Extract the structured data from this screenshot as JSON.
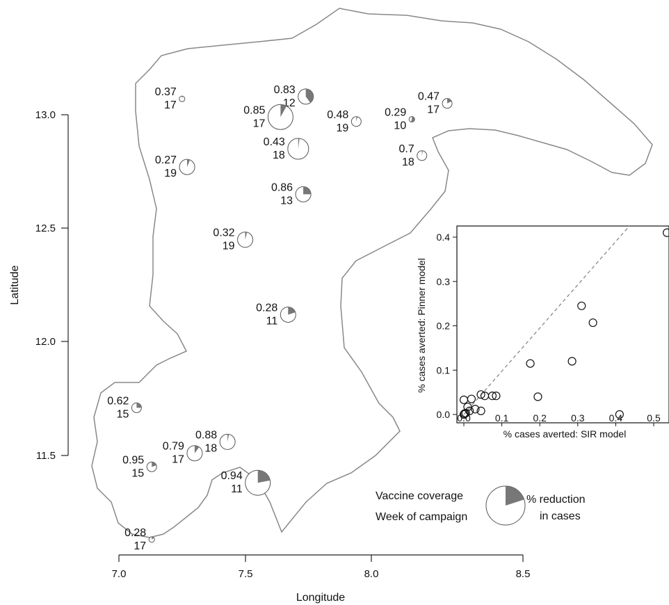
{
  "map": {
    "xlabel": "Longitude",
    "ylabel": "Latitude",
    "xticks": [
      "7.0",
      "7.5",
      "8.0",
      "8.5"
    ],
    "yticks": [
      "11.5",
      "12.0",
      "12.5",
      "13.0"
    ],
    "colors": {
      "outline": "#888888",
      "wedge": "#777777",
      "pie_edge": "#555555"
    }
  },
  "sites": [
    {
      "coverage": "0.37",
      "week": "17",
      "lon": 7.25,
      "lat": 13.07,
      "reduction": 0.05,
      "size": "xs"
    },
    {
      "coverage": "0.83",
      "week": "12",
      "lon": 7.74,
      "lat": 13.08,
      "reduction": 0.4,
      "size": "m"
    },
    {
      "coverage": "0.85",
      "week": "17",
      "lon": 7.64,
      "lat": 12.99,
      "reduction": 0.08,
      "size": "xl"
    },
    {
      "coverage": "0.48",
      "week": "19",
      "lon": 7.94,
      "lat": 12.97,
      "reduction": 0.04,
      "size": "s"
    },
    {
      "coverage": "0.29",
      "week": "10",
      "lon": 8.16,
      "lat": 12.98,
      "reduction": 0.55,
      "size": "xs"
    },
    {
      "coverage": "0.47",
      "week": "17",
      "lon": 8.3,
      "lat": 13.05,
      "reduction": 0.18,
      "size": "s"
    },
    {
      "coverage": "0.43",
      "week": "18",
      "lon": 7.71,
      "lat": 12.85,
      "reduction": 0.02,
      "size": "l"
    },
    {
      "coverage": "0.7",
      "week": "18",
      "lon": 8.2,
      "lat": 12.82,
      "reduction": 0.03,
      "size": "s"
    },
    {
      "coverage": "0.27",
      "week": "19",
      "lon": 7.27,
      "lat": 12.77,
      "reduction": 0.06,
      "size": "m"
    },
    {
      "coverage": "0.86",
      "week": "13",
      "lon": 7.73,
      "lat": 12.65,
      "reduction": 0.25,
      "size": "m"
    },
    {
      "coverage": "0.32",
      "week": "19",
      "lon": 7.5,
      "lat": 12.45,
      "reduction": 0.04,
      "size": "m"
    },
    {
      "coverage": "0.28",
      "week": "11",
      "lon": 7.67,
      "lat": 12.12,
      "reduction": 0.2,
      "size": "m"
    },
    {
      "coverage": "0.62",
      "week": "15",
      "lon": 7.07,
      "lat": 11.71,
      "reduction": 0.25,
      "size": "s"
    },
    {
      "coverage": "0.88",
      "week": "18",
      "lon": 7.43,
      "lat": 11.56,
      "reduction": 0.03,
      "size": "m"
    },
    {
      "coverage": "0.79",
      "week": "17",
      "lon": 7.3,
      "lat": 11.51,
      "reduction": 0.1,
      "size": "m"
    },
    {
      "coverage": "0.95",
      "week": "15",
      "lon": 7.13,
      "lat": 11.45,
      "reduction": 0.2,
      "size": "s"
    },
    {
      "coverage": "0.94",
      "week": "11",
      "lon": 7.55,
      "lat": 11.38,
      "reduction": 0.22,
      "size": "xl"
    },
    {
      "coverage": "0.28",
      "week": "17",
      "lon": 7.13,
      "lat": 11.13,
      "reduction": 0.15,
      "size": "xs"
    }
  ],
  "legend": {
    "line1": "Vaccine coverage",
    "line2": "Week of campaign",
    "right1": "% reduction",
    "right2": "in cases",
    "example_reduction": 0.2
  },
  "chart_data": {
    "type": "scatter",
    "xlabel": "% cases averted: SIR model",
    "ylabel": "% cases averted: Pinner model",
    "xlim": [
      -0.02,
      0.54
    ],
    "ylim": [
      -0.01,
      0.42
    ],
    "xticks": [
      "0.0",
      "0.1",
      "0.2",
      "0.3",
      "0.4",
      "0.5"
    ],
    "yticks": [
      "0.0",
      "0.1",
      "0.2",
      "0.3",
      "0.4"
    ],
    "reference_line": "y = x",
    "points": [
      {
        "x": 0.0,
        "y": 0.0
      },
      {
        "x": 0.002,
        "y": 0.002
      },
      {
        "x": 0.005,
        "y": 0.003
      },
      {
        "x": 0.0,
        "y": 0.033
      },
      {
        "x": 0.01,
        "y": 0.017
      },
      {
        "x": 0.02,
        "y": 0.035
      },
      {
        "x": 0.015,
        "y": 0.008
      },
      {
        "x": 0.03,
        "y": 0.012
      },
      {
        "x": 0.045,
        "y": 0.008
      },
      {
        "x": 0.045,
        "y": 0.045
      },
      {
        "x": 0.055,
        "y": 0.042
      },
      {
        "x": 0.075,
        "y": 0.042
      },
      {
        "x": 0.085,
        "y": 0.042
      },
      {
        "x": 0.175,
        "y": 0.115
      },
      {
        "x": 0.195,
        "y": 0.04
      },
      {
        "x": 0.285,
        "y": 0.12
      },
      {
        "x": 0.31,
        "y": 0.245
      },
      {
        "x": 0.34,
        "y": 0.207
      },
      {
        "x": 0.41,
        "y": 0.0
      },
      {
        "x": 0.535,
        "y": 0.41
      }
    ]
  }
}
